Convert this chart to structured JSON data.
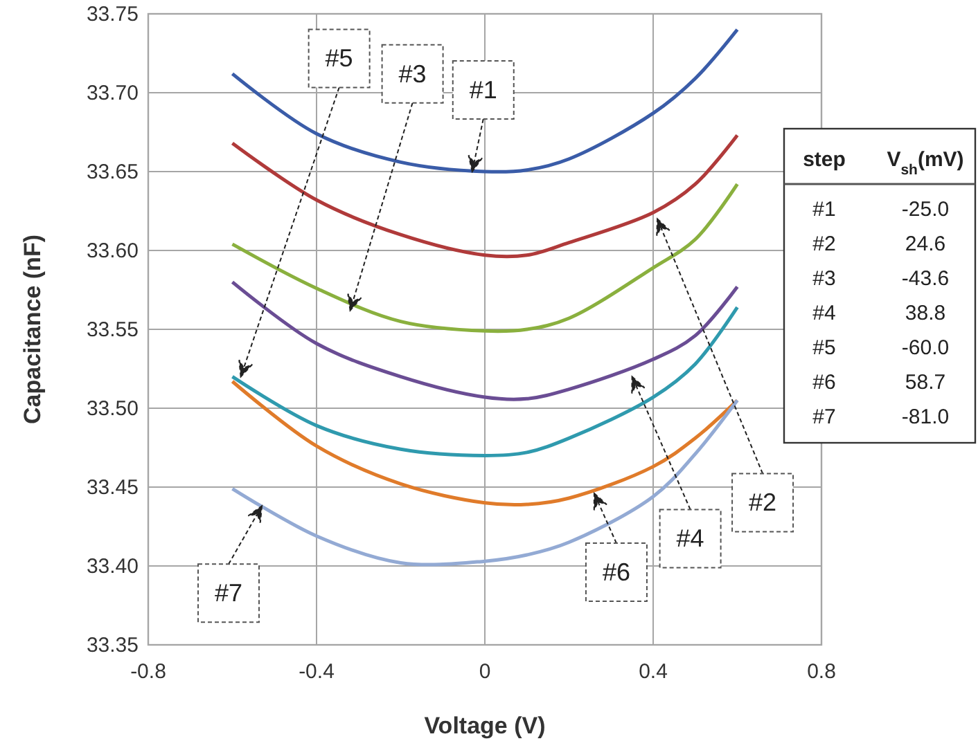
{
  "chart_data": {
    "type": "line",
    "xlabel": "Voltage (V)",
    "ylabel": "Capacitance (nF)",
    "xlim": [
      -0.8,
      0.8
    ],
    "xticks": [
      -0.8,
      -0.4,
      0,
      0.4,
      0.8
    ],
    "ylim": [
      33.35,
      33.75
    ],
    "yticks": [
      {
        "value": 33.35,
        "label": "33.35"
      },
      {
        "value": 33.4,
        "label": "33.40"
      },
      {
        "value": 33.45,
        "label": "33.45"
      },
      {
        "value": 33.5,
        "label": "33.50"
      },
      {
        "value": 33.55,
        "label": "33.55"
      },
      {
        "value": 33.6,
        "label": "33.60"
      },
      {
        "value": 33.65,
        "label": "33.65"
      },
      {
        "value": 33.7,
        "label": "33.70"
      },
      {
        "value": 33.75,
        "label": "33.75"
      }
    ],
    "grid": true,
    "marker": "none",
    "line_style": "solid",
    "x": [
      -0.6,
      -0.4,
      -0.2,
      0,
      0.1,
      0.2,
      0.4,
      0.5,
      0.6
    ],
    "series": [
      {
        "color": "#3a5ca8",
        "values": [
          33.712,
          33.674,
          33.656,
          33.65,
          33.651,
          33.658,
          33.687,
          33.709,
          33.74
        ]
      },
      {
        "color": "#b03a3a",
        "values": [
          33.668,
          33.632,
          33.61,
          33.597,
          33.597,
          33.605,
          33.624,
          33.642,
          33.673
        ]
      },
      {
        "color": "#8ab03e",
        "values": [
          33.604,
          33.576,
          33.555,
          33.549,
          33.55,
          33.557,
          33.589,
          33.607,
          33.642
        ]
      },
      {
        "color": "#6a4d94",
        "values": [
          33.58,
          33.541,
          33.52,
          33.507,
          33.506,
          33.512,
          33.531,
          33.546,
          33.577
        ]
      },
      {
        "color": "#2f9aae",
        "values": [
          33.52,
          33.489,
          33.474,
          33.47,
          33.472,
          33.481,
          33.507,
          33.528,
          33.564
        ]
      },
      {
        "color": "#e07b2a",
        "values": [
          33.517,
          33.476,
          33.452,
          33.44,
          33.439,
          33.443,
          33.463,
          33.481,
          33.505
        ]
      },
      {
        "color": "#93aad4",
        "values": [
          33.449,
          33.419,
          33.402,
          33.403,
          33.407,
          33.415,
          33.444,
          33.471,
          33.505
        ]
      }
    ],
    "annotations": [
      {
        "text": "#1",
        "x": -0.03,
        "y": 33.65
      },
      {
        "text": "#2",
        "x": 0.41,
        "y": 33.62
      },
      {
        "text": "#3",
        "x": -0.32,
        "y": 33.562
      },
      {
        "text": "#4",
        "x": 0.35,
        "y": 33.52
      },
      {
        "text": "#5",
        "x": -0.58,
        "y": 33.52
      },
      {
        "text": "#6",
        "x": 0.26,
        "y": 33.446
      },
      {
        "text": "#7",
        "x": -0.53,
        "y": 33.438
      },
      "step",
      "V$_{sh}$(mV)",
      "#1",
      "-25.0",
      "#2",
      "24.6",
      "#3",
      "-43.6",
      "#4",
      "38.8",
      "#5",
      "-60.0",
      "#6",
      "58.7",
      "#7",
      "-81.0"
    ]
  }
}
